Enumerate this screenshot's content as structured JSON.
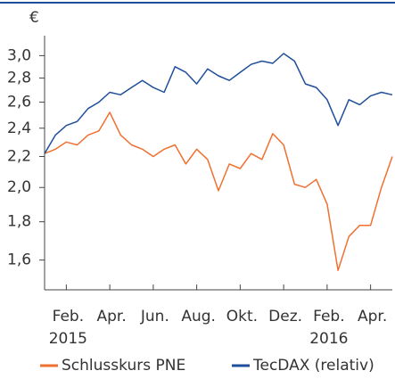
{
  "chart_data": {
    "type": "line",
    "y_label": "€",
    "x": [
      0,
      0.5,
      1,
      1.5,
      2,
      2.5,
      3,
      3.5,
      4,
      4.5,
      5,
      5.5,
      6,
      6.5,
      7,
      7.5,
      8,
      8.5,
      9,
      9.5,
      10,
      10.5,
      11,
      11.5,
      12,
      12.5,
      13,
      13.5,
      14,
      14.5,
      15,
      15.5,
      16
    ],
    "series": [
      {
        "name": "Schlusskurs PNE",
        "color": "#f07030",
        "values": [
          2.22,
          2.25,
          2.3,
          2.28,
          2.35,
          2.38,
          2.52,
          2.35,
          2.28,
          2.25,
          2.2,
          2.25,
          2.28,
          2.15,
          2.25,
          2.18,
          1.98,
          2.15,
          2.12,
          2.22,
          2.18,
          2.36,
          2.28,
          2.02,
          2.0,
          2.05,
          1.9,
          1.55,
          1.72,
          1.78,
          1.78,
          2.0,
          2.2
        ]
      },
      {
        "name": "TecDAX (relativ)",
        "color": "#1f4e9a",
        "values": [
          2.22,
          2.35,
          2.42,
          2.45,
          2.55,
          2.6,
          2.68,
          2.66,
          2.72,
          2.78,
          2.72,
          2.68,
          2.9,
          2.85,
          2.75,
          2.88,
          2.82,
          2.78,
          2.85,
          2.92,
          2.95,
          2.93,
          3.02,
          2.95,
          2.75,
          2.72,
          2.62,
          2.42,
          2.62,
          2.58,
          2.65,
          2.68,
          2.66
        ]
      }
    ],
    "xlim": [
      0,
      16
    ],
    "xticks": [
      {
        "value": 1,
        "label": "Feb."
      },
      {
        "value": 3,
        "label": "Apr."
      },
      {
        "value": 5,
        "label": "Jun."
      },
      {
        "value": 7,
        "label": "Aug."
      },
      {
        "value": 9,
        "label": "Okt."
      },
      {
        "value": 11,
        "label": "Dez."
      },
      {
        "value": 13,
        "label": "Feb."
      },
      {
        "value": 15,
        "label": "Apr."
      }
    ],
    "xtick_years": [
      {
        "value": 1,
        "label": "2015"
      },
      {
        "value": 13,
        "label": "2016"
      }
    ],
    "ylim": [
      1.46,
      3.19
    ],
    "log_y": true,
    "yticks": [
      {
        "value": 3.0,
        "label": "3,0"
      },
      {
        "value": 2.8,
        "label": "2,8"
      },
      {
        "value": 2.6,
        "label": "2,6"
      },
      {
        "value": 2.4,
        "label": "2,4"
      },
      {
        "value": 2.2,
        "label": "2,2"
      },
      {
        "value": 2.0,
        "label": "2,0"
      },
      {
        "value": 1.8,
        "label": "1,8"
      },
      {
        "value": 1.6,
        "label": "1,6"
      }
    ],
    "legend": "bottom"
  }
}
